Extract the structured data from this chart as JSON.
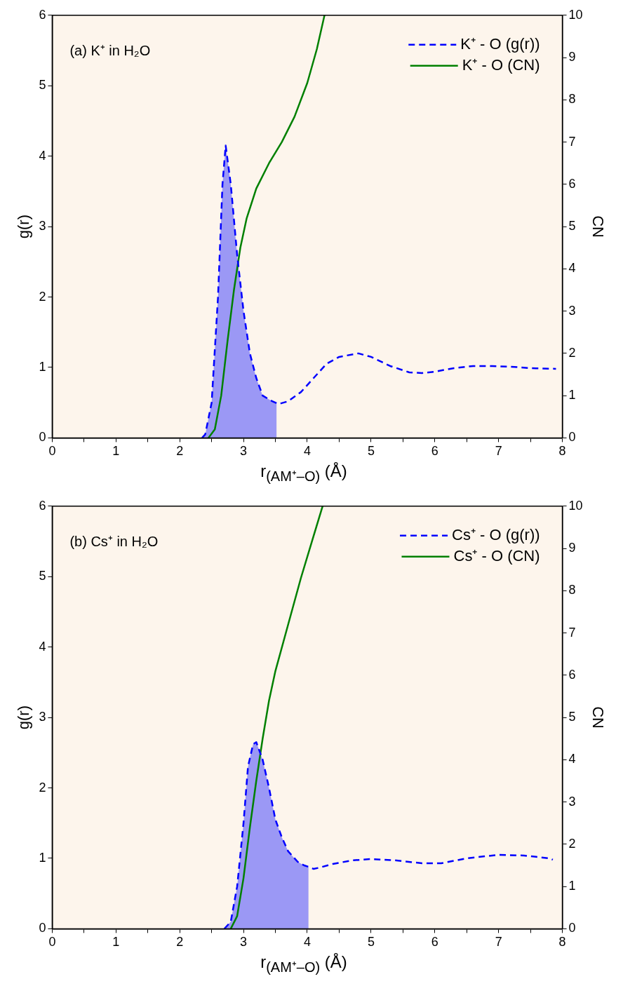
{
  "chart_data": [
    {
      "type": "line",
      "xlabel": "r$_{(AM⁺–O)}$ (Å)",
      "ylabel": "g(r)",
      "y2label": "CN",
      "annotations": [
        "(a) K⁺ in H₂O"
      ],
      "xlim": [
        0,
        8
      ],
      "xticks": [
        0,
        {
          "value": 0.5,
          "label": null
        },
        1,
        {
          "value": 1.5,
          "label": null
        },
        2,
        {
          "value": 2.5,
          "label": null
        },
        3,
        {
          "value": 3.5,
          "label": null
        },
        4,
        {
          "value": 4.5,
          "label": null
        },
        5,
        {
          "value": 5.5,
          "label": null
        },
        6,
        {
          "value": 6.5,
          "label": null
        },
        7,
        {
          "value": 7.5,
          "label": null
        },
        8
      ],
      "ylim": [
        0,
        6
      ],
      "yticks": [
        0,
        1,
        2,
        3,
        4,
        5,
        6
      ],
      "y2lim": [
        0,
        10
      ],
      "y2ticks": [
        0,
        1,
        2,
        3,
        4,
        5,
        6,
        7,
        8,
        9,
        10
      ],
      "grid": false,
      "legend": "top right",
      "marker": "none",
      "series": [
        {
          "type": "area",
          "color": "#9b98f5",
          "x": [
            2.35,
            2.4,
            2.5,
            2.6,
            2.67,
            2.72,
            2.8,
            2.9,
            3.0,
            3.1,
            3.2,
            3.3,
            3.45,
            3.52
          ],
          "values": [
            0,
            0.05,
            0.5,
            2,
            3.6,
            4.15,
            3.6,
            2.6,
            1.8,
            1.2,
            0.85,
            0.6,
            0.52,
            0.49
          ]
        },
        {
          "name": "K⁺ - O (g(r))",
          "color": "#0000ff",
          "line_style": "dashed",
          "x": [
            2.35,
            2.4,
            2.5,
            2.6,
            2.67,
            2.72,
            2.8,
            2.9,
            3.0,
            3.1,
            3.2,
            3.3,
            3.45,
            3.55,
            3.7,
            3.9,
            4.1,
            4.3,
            4.5,
            4.8,
            5.0,
            5.3,
            5.6,
            5.8,
            6.0,
            6.3,
            6.6,
            6.9,
            7.2,
            7.5,
            7.9
          ],
          "values": [
            0,
            0.05,
            0.5,
            2,
            3.6,
            4.15,
            3.6,
            2.6,
            1.8,
            1.2,
            0.85,
            0.6,
            0.52,
            0.48,
            0.52,
            0.65,
            0.85,
            1.05,
            1.15,
            1.2,
            1.15,
            1.02,
            0.93,
            0.92,
            0.94,
            0.99,
            1.02,
            1.02,
            1.01,
            0.99,
            0.98
          ]
        },
        {
          "name": "K⁺ - O (CN)",
          "color": "#008000",
          "line_style": "solid",
          "axis": "y2",
          "x": [
            2.45,
            2.55,
            2.65,
            2.75,
            2.85,
            2.95,
            3.05,
            3.2,
            3.4,
            3.6,
            3.8,
            4.0,
            4.15,
            4.27
          ],
          "values": [
            0,
            0.2,
            1,
            2.3,
            3.5,
            4.5,
            5.2,
            5.9,
            6.5,
            7.0,
            7.6,
            8.4,
            9.2,
            10
          ]
        }
      ]
    },
    {
      "type": "line",
      "xlabel": "r$_{(AM⁺–O)}$ (Å)",
      "ylabel": "g(r)",
      "y2label": "CN",
      "annotations": [
        "(b) Cs⁺ in H₂O"
      ],
      "xlim": [
        0,
        8
      ],
      "xticks": [
        0,
        {
          "value": 0.5,
          "label": null
        },
        1,
        {
          "value": 1.5,
          "label": null
        },
        2,
        {
          "value": 2.5,
          "label": null
        },
        3,
        {
          "value": 3.5,
          "label": null
        },
        4,
        {
          "value": 4.5,
          "label": null
        },
        5,
        {
          "value": 5.5,
          "label": null
        },
        6,
        {
          "value": 6.5,
          "label": null
        },
        7,
        {
          "value": 7.5,
          "label": null
        },
        8
      ],
      "ylim": [
        0,
        6
      ],
      "yticks": [
        0,
        1,
        2,
        3,
        4,
        5,
        6
      ],
      "y2lim": [
        0,
        10
      ],
      "y2ticks": [
        0,
        1,
        2,
        3,
        4,
        5,
        6,
        7,
        8,
        9,
        10
      ],
      "grid": false,
      "legend": "top right",
      "marker": "none",
      "series": [
        {
          "type": "area",
          "color": "#9b98f5",
          "x": [
            2.7,
            2.8,
            2.9,
            3.0,
            3.07,
            3.15,
            3.2,
            3.3,
            3.4,
            3.5,
            3.6,
            3.7,
            3.85,
            3.95,
            4.02
          ],
          "values": [
            0,
            0.1,
            0.6,
            1.5,
            2.3,
            2.62,
            2.65,
            2.4,
            2.0,
            1.55,
            1.3,
            1.1,
            0.95,
            0.9,
            0.88
          ]
        },
        {
          "name": "Cs⁺ - O (g(r))",
          "color": "#0000ff",
          "line_style": "dashed",
          "x": [
            2.7,
            2.8,
            2.9,
            3.0,
            3.07,
            3.15,
            3.2,
            3.3,
            3.4,
            3.5,
            3.6,
            3.7,
            3.85,
            3.95,
            4.02,
            4.1,
            4.2,
            4.4,
            4.7,
            5.0,
            5.4,
            5.8,
            6.1,
            6.5,
            7.0,
            7.4,
            7.8,
            7.85
          ],
          "values": [
            0,
            0.1,
            0.6,
            1.5,
            2.3,
            2.62,
            2.65,
            2.4,
            2.0,
            1.55,
            1.3,
            1.1,
            0.95,
            0.9,
            0.88,
            0.85,
            0.87,
            0.92,
            0.97,
            0.99,
            0.97,
            0.93,
            0.93,
            1.0,
            1.05,
            1.04,
            1.0,
            0.98
          ]
        },
        {
          "name": "Cs⁺ - O (CN)",
          "color": "#008000",
          "line_style": "solid",
          "axis": "y2",
          "x": [
            2.8,
            2.9,
            3.0,
            3.1,
            3.2,
            3.3,
            3.4,
            3.5,
            3.7,
            3.9,
            4.1,
            4.24
          ],
          "values": [
            0,
            0.3,
            1.2,
            2.4,
            3.5,
            4.5,
            5.4,
            6.1,
            7.2,
            8.3,
            9.3,
            10
          ]
        }
      ]
    }
  ]
}
